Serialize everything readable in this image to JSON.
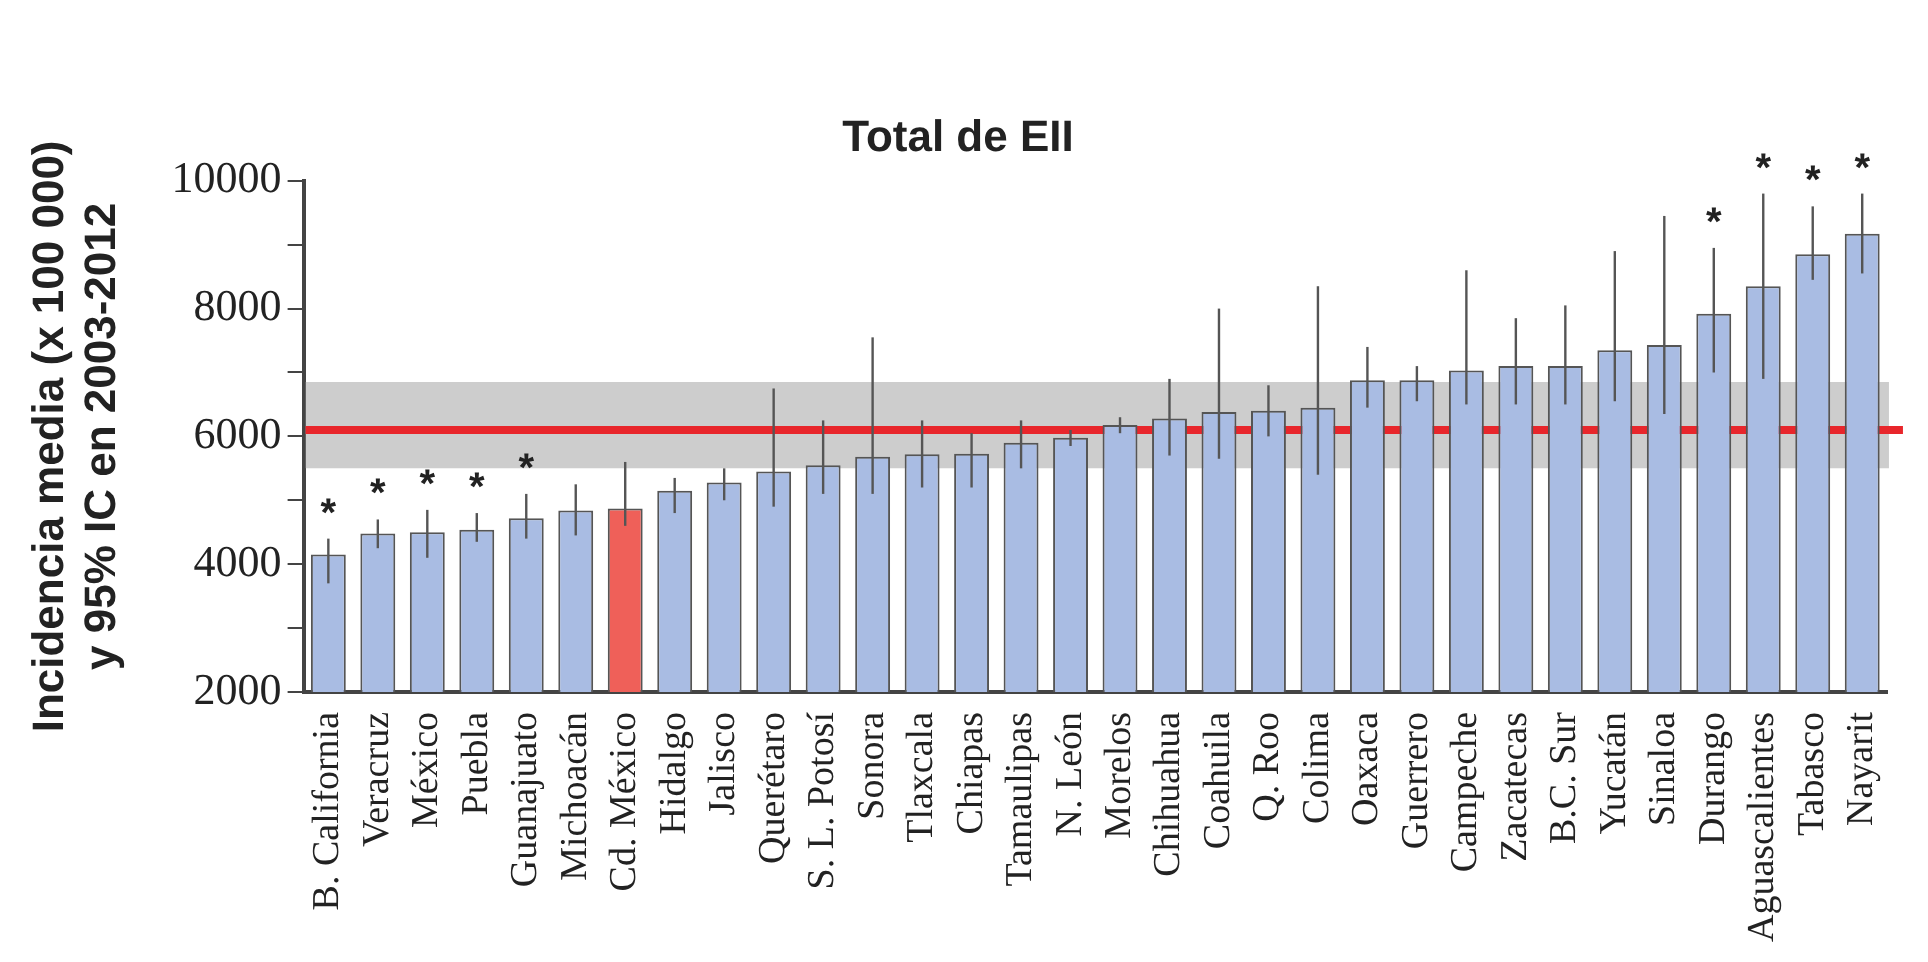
{
  "chart_data": {
    "type": "bar",
    "title": "Total de EII",
    "ylabel": "Incidencia media (x 100 000)\ny 95% IC en 2003-2012",
    "categories": [
      "B. California",
      "Veracruz",
      "México",
      "Puebla",
      "Guanajuato",
      "Michoacán",
      "Cd. México",
      "Hidalgo",
      "Jalisco",
      "Querétaro",
      "S. L. Potosí",
      "Sonora",
      "Tlaxcala",
      "Chiapas",
      "Tamaulipas",
      "N. León",
      "Morelos",
      "Chihuahua",
      "Coahuila",
      "Q. Roo",
      "Colima",
      "Oaxaca",
      "Guerrero",
      "Campeche",
      "Zacatecas",
      "B.C. Sur",
      "Yucatán",
      "Sinaloa",
      "Durango",
      "Aguascalientes",
      "Tabasco",
      "Nayarit"
    ],
    "values": [
      4150,
      4480,
      4500,
      4540,
      4720,
      4840,
      4870,
      5150,
      5280,
      5450,
      5550,
      5680,
      5720,
      5730,
      5900,
      5980,
      6180,
      6280,
      6380,
      6400,
      6450,
      6880,
      6880,
      7030,
      7100,
      7100,
      7350,
      7430,
      7920,
      8350,
      8850,
      9170
    ],
    "errors": [
      [
        3700,
        4400
      ],
      [
        4250,
        4700
      ],
      [
        4100,
        4850
      ],
      [
        4350,
        4800
      ],
      [
        4400,
        5100
      ],
      [
        4450,
        5250
      ],
      [
        4600,
        5600
      ],
      [
        4800,
        5350
      ],
      [
        5000,
        5500
      ],
      [
        4900,
        6750
      ],
      [
        5100,
        6250
      ],
      [
        5100,
        7550
      ],
      [
        5200,
        6250
      ],
      [
        5200,
        6050
      ],
      [
        5500,
        6250
      ],
      [
        5850,
        6100
      ],
      [
        6050,
        6300
      ],
      [
        5700,
        6900
      ],
      [
        5650,
        8000
      ],
      [
        6000,
        6800
      ],
      [
        5400,
        8350
      ],
      [
        6450,
        7400
      ],
      [
        6550,
        7100
      ],
      [
        6500,
        8600
      ],
      [
        6500,
        7850
      ],
      [
        6500,
        8050
      ],
      [
        6550,
        8900
      ],
      [
        6350,
        9450
      ],
      [
        7000,
        8950
      ],
      [
        6900,
        9800
      ],
      [
        8450,
        9600
      ],
      [
        8550,
        9800
      ]
    ],
    "colors": [
      "#a9bce3",
      "#a9bce3",
      "#a9bce3",
      "#a9bce3",
      "#a9bce3",
      "#a9bce3",
      "#ef6059",
      "#a9bce3",
      "#a9bce3",
      "#a9bce3",
      "#a9bce3",
      "#a9bce3",
      "#a9bce3",
      "#a9bce3",
      "#a9bce3",
      "#a9bce3",
      "#a9bce3",
      "#a9bce3",
      "#a9bce3",
      "#a9bce3",
      "#a9bce3",
      "#a9bce3",
      "#a9bce3",
      "#a9bce3",
      "#a9bce3",
      "#a9bce3",
      "#a9bce3",
      "#a9bce3",
      "#a9bce3",
      "#a9bce3",
      "#a9bce3",
      "#a9bce3"
    ],
    "ylim": [
      2000,
      10000
    ],
    "yticks": [
      2000,
      {
        "value": 3000,
        "label": null
      },
      4000,
      {
        "value": 5000,
        "label": null
      },
      6000,
      {
        "value": 7000,
        "label": null
      },
      8000,
      {
        "value": 9000,
        "label": null
      },
      10000
    ],
    "ref_lines": [
      {
        "axis": "y",
        "value": 6100,
        "color": "#e8262b"
      }
    ],
    "bands": [
      {
        "axis": "y",
        "from": 5500,
        "to": 6850,
        "color": "#b4b4b4"
      }
    ],
    "annotations": [
      {
        "text": "*",
        "x": "B. California",
        "y": 4150
      },
      {
        "text": "*",
        "x": "Veracruz",
        "y": 4480
      },
      {
        "text": "*",
        "x": "México",
        "y": 4500
      },
      {
        "text": "*",
        "x": "Puebla",
        "y": 4540
      },
      {
        "text": "*",
        "x": "Guanajuato",
        "y": 4720
      },
      {
        "text": "*",
        "x": "Durango",
        "y": 7920
      },
      {
        "text": "*",
        "x": "Aguascalientes",
        "y": 8350
      },
      {
        "text": "*",
        "x": "Tabasco",
        "y": 8850
      },
      {
        "text": "*",
        "x": "Nayarit",
        "y": 9170
      }
    ],
    "grid": false,
    "legend": false
  }
}
